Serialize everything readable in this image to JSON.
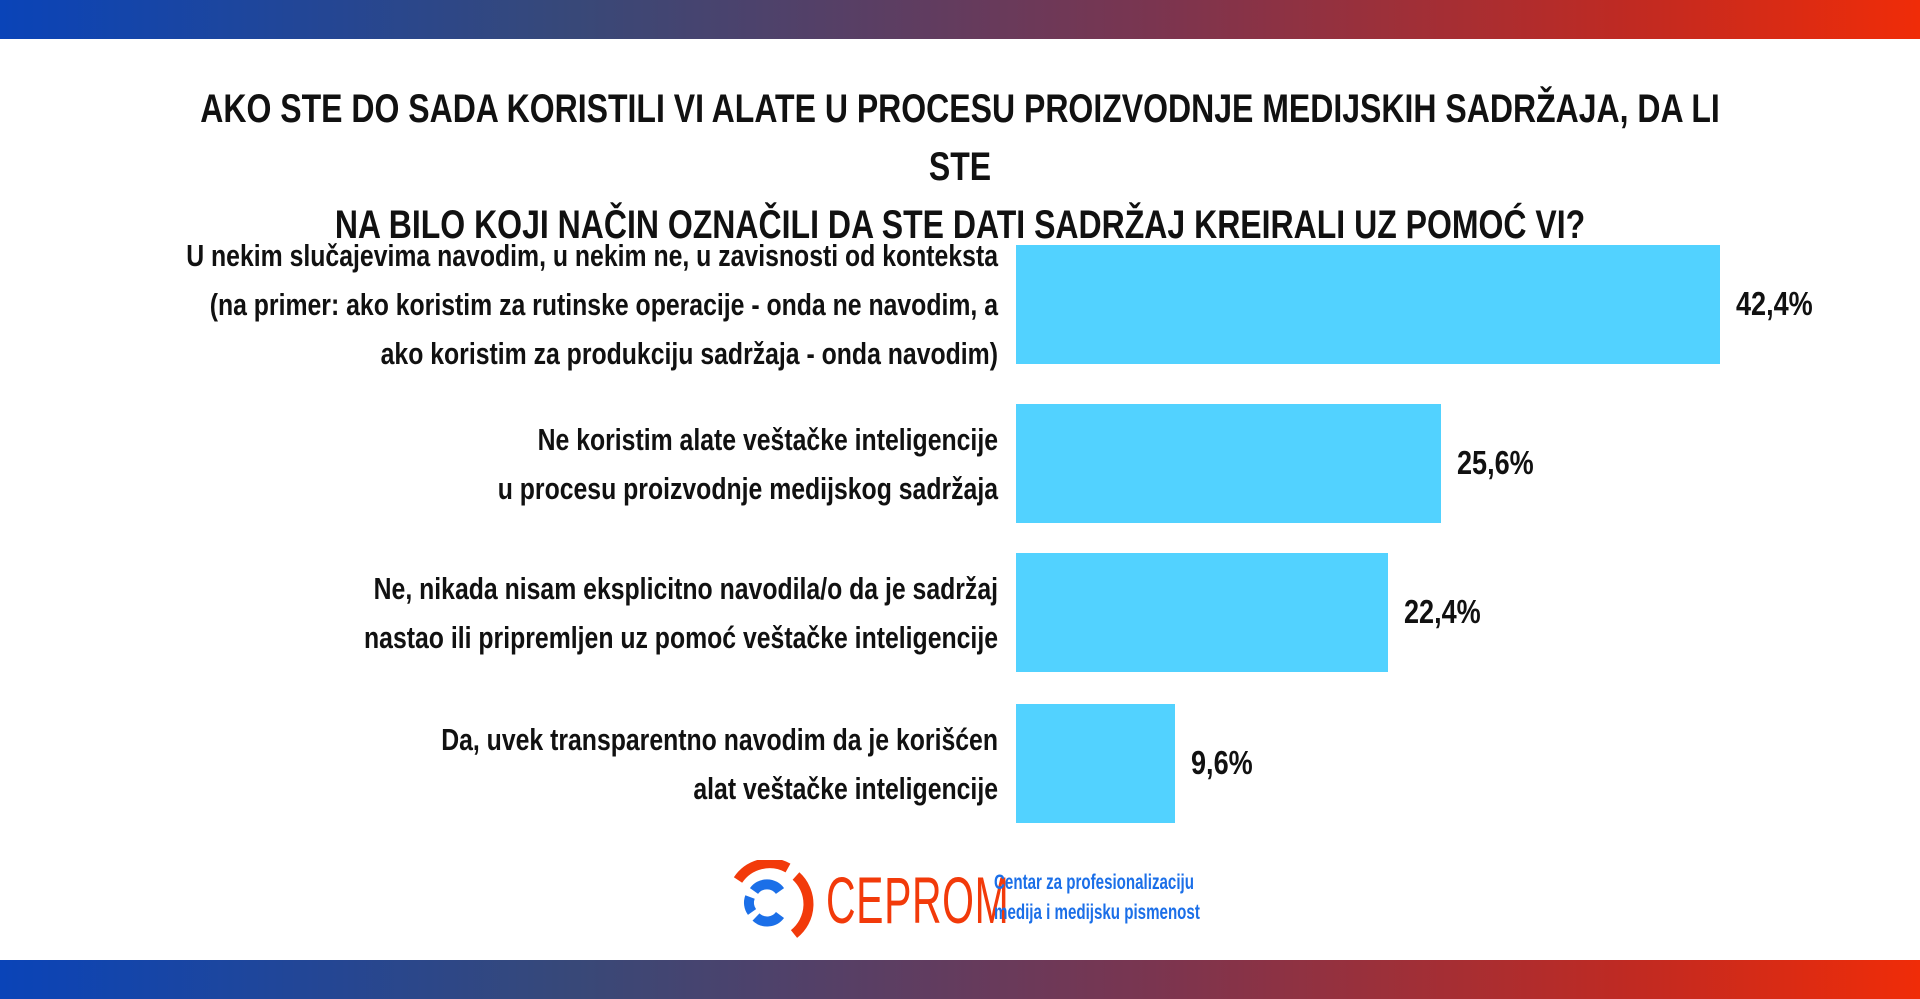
{
  "chart_data": {
    "type": "bar",
    "orientation": "horizontal",
    "title_lines": [
      "AKO STE DO SADA KORISTILI VI ALATE U PROCESU PROIZVODNJE MEDIJSKIH SADRŽAJA, DA LI STE",
      "NA BILO KOJI NAČIN OZNAČILI DA STE DATI SADRŽAJ KREIRALI UZ POMOĆ VI?"
    ],
    "categories": [
      [
        "U nekim slučajevima navodim, u nekim ne, u zavisnosti od konteksta",
        "(na primer: ako koristim za rutinske operacije - onda ne navodim, a",
        "ako koristim za produkciju sadržaja - onda navodim)"
      ],
      [
        "Ne koristim alate veštačke inteligencije",
        "u procesu proizvodnje medijskog sadržaja"
      ],
      [
        "Ne, nikada nisam eksplicitno navodila/o da je sadržaj",
        "nastao ili pripremljen uz pomoć veštačke inteligencije"
      ],
      [
        "Da, uvek transparentno navodim da je korišćen",
        "alat veštačke inteligencije"
      ]
    ],
    "values": [
      42.4,
      25.6,
      22.4,
      9.6
    ],
    "value_labels": [
      "42,4%",
      "25,6%",
      "22,4%",
      "9,6%"
    ],
    "bar_color": "#52d2ff",
    "xlim": [
      0,
      100
    ]
  },
  "footer": {
    "logo_text": "CEPROM",
    "tagline_lines": [
      "Centar za profesionalizaciju",
      "medija i medijsku pismenost"
    ]
  }
}
